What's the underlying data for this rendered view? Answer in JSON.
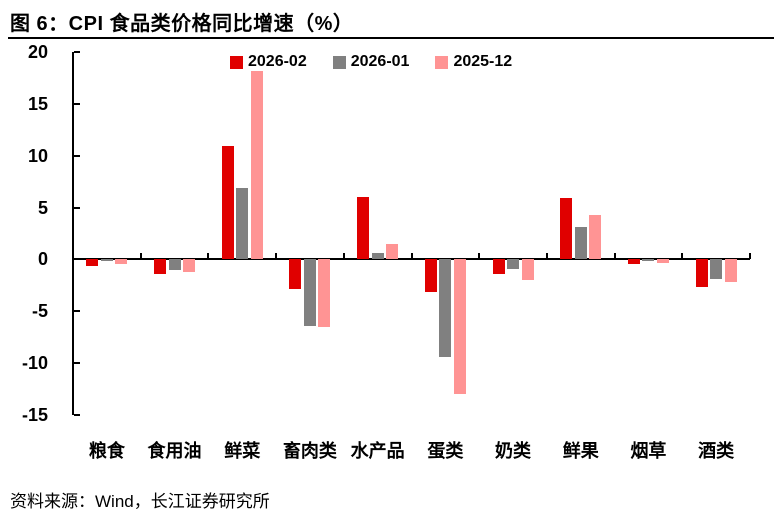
{
  "figure": {
    "title": "图 6：CPI 食品类价格同比增速（%）",
    "source": "资料来源：Wind，长江证券研究所"
  },
  "chart_data": {
    "type": "bar",
    "title": "图 6：CPI 食品类价格同比增速（%）",
    "categories": [
      "粮食",
      "食用油",
      "鲜菜",
      "畜肉类",
      "水产品",
      "蛋类",
      "奶类",
      "鲜果",
      "烟草",
      "酒类"
    ],
    "series": [
      {
        "name": "2026-02",
        "color": "#e00000",
        "values": [
          -0.6,
          -1.4,
          10.9,
          -2.9,
          6.0,
          -3.1,
          -1.4,
          5.9,
          -0.4,
          -2.7
        ]
      },
      {
        "name": "2026-01",
        "color": "#808080",
        "values": [
          -0.2,
          -1.0,
          6.9,
          -6.4,
          0.6,
          -9.4,
          -0.9,
          3.1,
          -0.2,
          -1.9
        ]
      },
      {
        "name": "2025-12",
        "color": "#ff9494",
        "values": [
          -0.4,
          -1.2,
          18.2,
          -6.5,
          1.5,
          -13.0,
          -2.0,
          4.3,
          -0.3,
          -2.2
        ]
      }
    ],
    "ylim": [
      -15,
      20
    ],
    "yticks": [
      20,
      15,
      10,
      5,
      0,
      -5,
      -10,
      -15
    ],
    "xlabel": "",
    "ylabel": "",
    "grid": false,
    "legend_position": "top-center",
    "axis_color": "#000000",
    "text_color": "#000000"
  }
}
